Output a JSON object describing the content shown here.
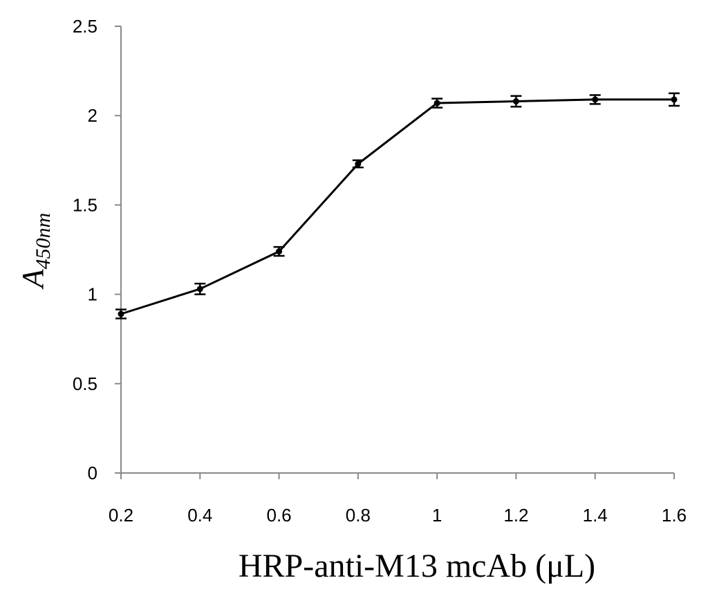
{
  "chart_data": {
    "type": "line",
    "title": "",
    "xlabel": "HRP-anti-M13 mcAb (μL)",
    "ylabel_main": "A",
    "ylabel_sub": "450nm",
    "x": [
      0.2,
      0.4,
      0.6,
      0.8,
      1.0,
      1.2,
      1.4,
      1.6
    ],
    "x_tick_labels": [
      "0.2",
      "0.4",
      "0.6",
      "0.8",
      "1",
      "1.2",
      "1.4",
      "1.6"
    ],
    "y_tick_values": [
      0,
      0.5,
      1,
      1.5,
      2,
      2.5
    ],
    "y_tick_labels": [
      "0",
      "0.5",
      "1",
      "1.5",
      "2",
      "2.5"
    ],
    "ylim": [
      0,
      2.5
    ],
    "grid": false,
    "series": [
      {
        "values": [
          0.89,
          1.03,
          1.24,
          1.73,
          2.07,
          2.08,
          2.09,
          2.09
        ],
        "errors": [
          0.025,
          0.03,
          0.025,
          0.02,
          0.025,
          0.03,
          0.025,
          0.035
        ]
      }
    ],
    "colors": {
      "line": "#000000",
      "axis": "#888888"
    }
  }
}
